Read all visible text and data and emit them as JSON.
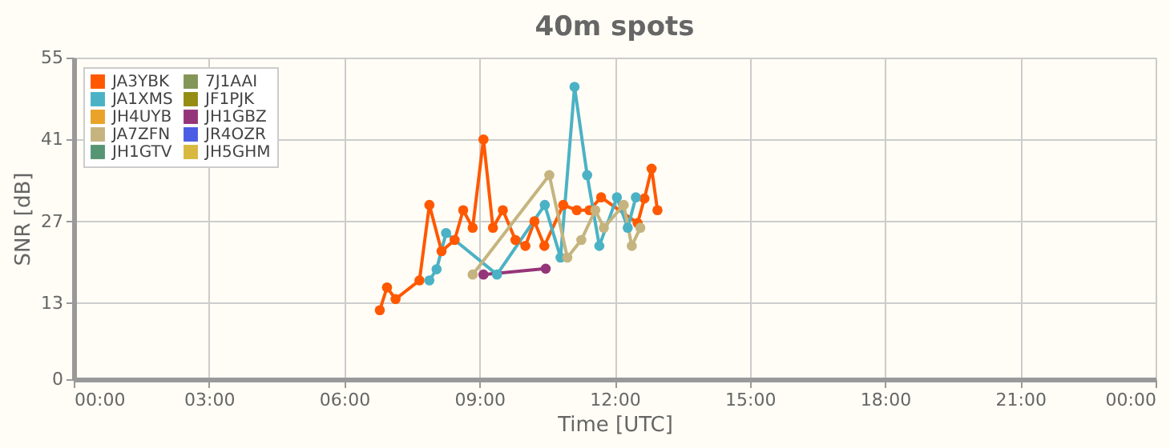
{
  "chart_data": {
    "type": "line",
    "title": "40m spots",
    "xlabel": "Time [UTC]",
    "ylabel": "SNR [dB]",
    "xlim": [
      0,
      24
    ],
    "xticks": [
      {
        "value": 0,
        "label": "00:00"
      },
      {
        "value": 3,
        "label": "03:00"
      },
      {
        "value": 6,
        "label": "06:00"
      },
      {
        "value": 9,
        "label": "09:00"
      },
      {
        "value": 12,
        "label": "12:00"
      },
      {
        "value": 15,
        "label": "15:00"
      },
      {
        "value": 18,
        "label": "18:00"
      },
      {
        "value": 21,
        "label": "21:00"
      },
      {
        "value": 24,
        "label": "00:00"
      }
    ],
    "ylim": [
      0,
      55
    ],
    "yticks": [
      0,
      13,
      27,
      41,
      55
    ],
    "grid": true,
    "legend": "top left",
    "marker": "circle",
    "line_style": "solid",
    "series": [
      {
        "name": "JA3YBK",
        "color": "#ff5800",
        "x": [
          6.79,
          6.95,
          7.14,
          7.67,
          7.89,
          8.16,
          8.45,
          8.64,
          8.85,
          9.09,
          9.3,
          9.52,
          9.8,
          10.02,
          10.22,
          10.44,
          10.86,
          11.16,
          11.44,
          11.7,
          12.51,
          12.66,
          12.82,
          12.95
        ],
        "values": [
          11.8,
          15.7,
          13.7,
          16.9,
          29.8,
          21.9,
          23.8,
          28.9,
          25.9,
          41.0,
          25.9,
          28.9,
          23.8,
          22.8,
          27.0,
          22.8,
          29.8,
          28.9,
          28.9,
          31.1,
          26.7,
          30.9,
          36.0,
          28.9
        ]
      },
      {
        "name": "JA1XMS",
        "color": "#4bb2c5",
        "x": [
          7.89,
          8.05,
          8.26,
          9.39,
          10.45,
          10.8,
          11.11,
          11.39,
          11.66,
          12.05,
          12.29,
          12.47
        ],
        "values": [
          16.9,
          18.8,
          25.0,
          17.9,
          29.8,
          20.8,
          50.0,
          34.9,
          22.8,
          31.1,
          25.9,
          31.1
        ]
      },
      {
        "name": "JH4UYB",
        "color": "#eaa228"
      },
      {
        "name": "JA7ZFN",
        "color": "#c5b47f",
        "x": [
          8.85,
          10.55,
          10.95,
          11.26,
          11.57,
          11.76,
          12.2,
          12.38,
          12.57
        ],
        "values": [
          17.9,
          34.9,
          20.8,
          23.8,
          28.9,
          25.9,
          29.8,
          22.8,
          25.9
        ]
      },
      {
        "name": "JH1GTV",
        "color": "#579575"
      },
      {
        "name": "7J1AAI",
        "color": "#839557"
      },
      {
        "name": "JF1PJK",
        "color": "#958c12"
      },
      {
        "name": "JH1GBZ",
        "color": "#953579",
        "x": [
          9.09,
          10.47
        ],
        "values": [
          17.9,
          18.9
        ]
      },
      {
        "name": "JR4OZR",
        "color": "#4b5de4"
      },
      {
        "name": "JH5GHM",
        "color": "#d8b83f"
      }
    ]
  }
}
